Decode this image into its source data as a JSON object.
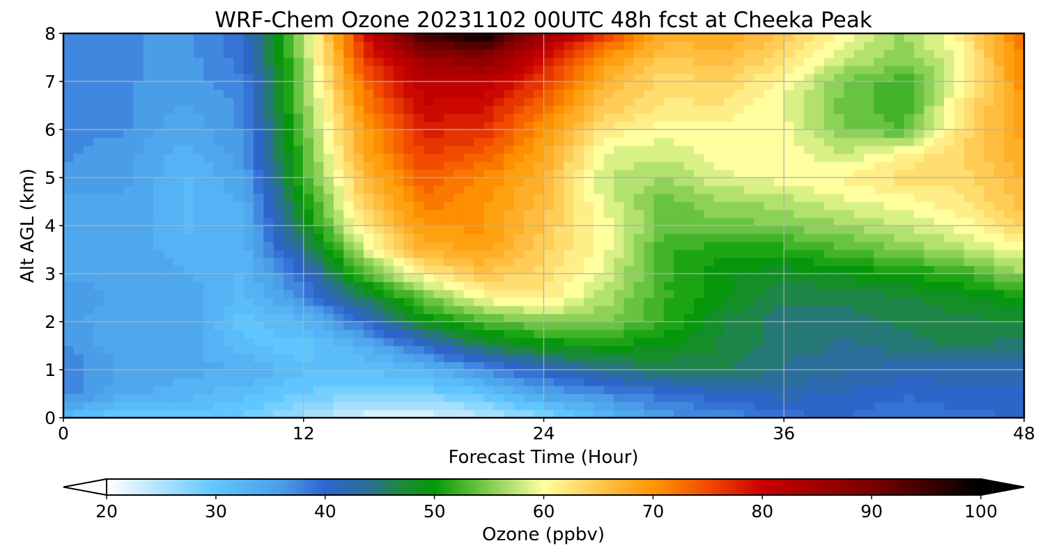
{
  "chart_data": {
    "type": "heatmap",
    "plot_style": "filled-contour",
    "title": "WRF-Chem Ozone  20231102 00UTC 48h fcst at Cheeka Peak",
    "xlabel": "Forecast Time (Hour)",
    "ylabel": "Alt AGL (km)",
    "xlim": [
      0,
      48
    ],
    "ylim": [
      0,
      8
    ],
    "xticks": [
      0,
      12,
      24,
      36,
      48
    ],
    "yticks": [
      0,
      1,
      2,
      3,
      4,
      5,
      6,
      7,
      8
    ],
    "grid": true,
    "x": [
      0,
      3,
      6,
      9,
      12,
      15,
      18,
      21,
      24,
      27,
      30,
      33,
      36,
      39,
      42,
      45,
      48
    ],
    "y": [
      0,
      0.5,
      1,
      1.5,
      2,
      2.5,
      3,
      3.5,
      4,
      4.5,
      5,
      5.5,
      6,
      6.5,
      7,
      7.5,
      8
    ],
    "z_ppbv_rows_by_altitude": [
      [
        32,
        29,
        30,
        29,
        26,
        22,
        22,
        24,
        27,
        32,
        36,
        37,
        39,
        40,
        38,
        39,
        40
      ],
      [
        38,
        34,
        33,
        31,
        29,
        28,
        28,
        30,
        35,
        37,
        39,
        41,
        42,
        41,
        40,
        41,
        41
      ],
      [
        38,
        35,
        34,
        34,
        31,
        31,
        32,
        37,
        41,
        44,
        46,
        46,
        44,
        43,
        42,
        42,
        42
      ],
      [
        37,
        34,
        35,
        31,
        30,
        33,
        40,
        46,
        49,
        50,
        49,
        47,
        45,
        44,
        45,
        46,
        45
      ],
      [
        36,
        34,
        35,
        30,
        32,
        40,
        49,
        53,
        55,
        55,
        52,
        47,
        45,
        45,
        46,
        47,
        47
      ],
      [
        36,
        35,
        35,
        32,
        37,
        46,
        54,
        60,
        62,
        57,
        52,
        49,
        46,
        46,
        47,
        48,
        50
      ],
      [
        35,
        35,
        34,
        32,
        40,
        53,
        61,
        65,
        63,
        59,
        52,
        49,
        48,
        49,
        50,
        52,
        56
      ],
      [
        35,
        35,
        33,
        33,
        44,
        58,
        67,
        69,
        64,
        60,
        52,
        51,
        51,
        53,
        55,
        57,
        60
      ],
      [
        35,
        35,
        32,
        33,
        48,
        62,
        70,
        70,
        65,
        60,
        54,
        54,
        55,
        56,
        58,
        60,
        64
      ],
      [
        35,
        35,
        32,
        34,
        50,
        64,
        72,
        70,
        66,
        59,
        54,
        56,
        57,
        59,
        60,
        62,
        66
      ],
      [
        36,
        36,
        32,
        35,
        52,
        66,
        74,
        71,
        67,
        58,
        56,
        59,
        60,
        61,
        63,
        63,
        67
      ],
      [
        37,
        36,
        33,
        36,
        53,
        68,
        76,
        74,
        68,
        59,
        58,
        60,
        60,
        58,
        61,
        64,
        68
      ],
      [
        37,
        37,
        34,
        37,
        54,
        69,
        78,
        77,
        70,
        62,
        60,
        60,
        60,
        55,
        53,
        63,
        69
      ],
      [
        37,
        37,
        35,
        37,
        55,
        71,
        80,
        79,
        73,
        65,
        62,
        62,
        59,
        54,
        52,
        62,
        70
      ],
      [
        37,
        37,
        36,
        38,
        55,
        73,
        82,
        82,
        76,
        67,
        63,
        64,
        60,
        55,
        52,
        60,
        71
      ],
      [
        37,
        37,
        36,
        39,
        56,
        76,
        86,
        88,
        80,
        70,
        65,
        66,
        63,
        58,
        55,
        60,
        72
      ],
      [
        37,
        37,
        36,
        40,
        57,
        78,
        96,
        100,
        85,
        76,
        68,
        68,
        65,
        60,
        56,
        62,
        73
      ]
    ],
    "colorbar": {
      "label": "Ozone  (ppbv)",
      "range": [
        20,
        100
      ],
      "ticks": [
        20,
        30,
        40,
        50,
        60,
        70,
        80,
        90,
        100
      ],
      "extend": "both",
      "orientation": "horizontal",
      "position": "bottom",
      "colors": [
        {
          "v": 20,
          "c": "#ffffff"
        },
        {
          "v": 30,
          "c": "#5fc6ff"
        },
        {
          "v": 36,
          "c": "#4a9ee8"
        },
        {
          "v": 40,
          "c": "#2f64d0"
        },
        {
          "v": 44,
          "c": "#2a6f92"
        },
        {
          "v": 47,
          "c": "#1c8a3a"
        },
        {
          "v": 50,
          "c": "#039a04"
        },
        {
          "v": 56,
          "c": "#9ad75e"
        },
        {
          "v": 60,
          "c": "#ffffa0"
        },
        {
          "v": 65,
          "c": "#ffc64e"
        },
        {
          "v": 70,
          "c": "#ff9600"
        },
        {
          "v": 75,
          "c": "#f24b00"
        },
        {
          "v": 80,
          "c": "#c80000"
        },
        {
          "v": 90,
          "c": "#7a0000"
        },
        {
          "v": 100,
          "c": "#000000"
        }
      ]
    }
  }
}
